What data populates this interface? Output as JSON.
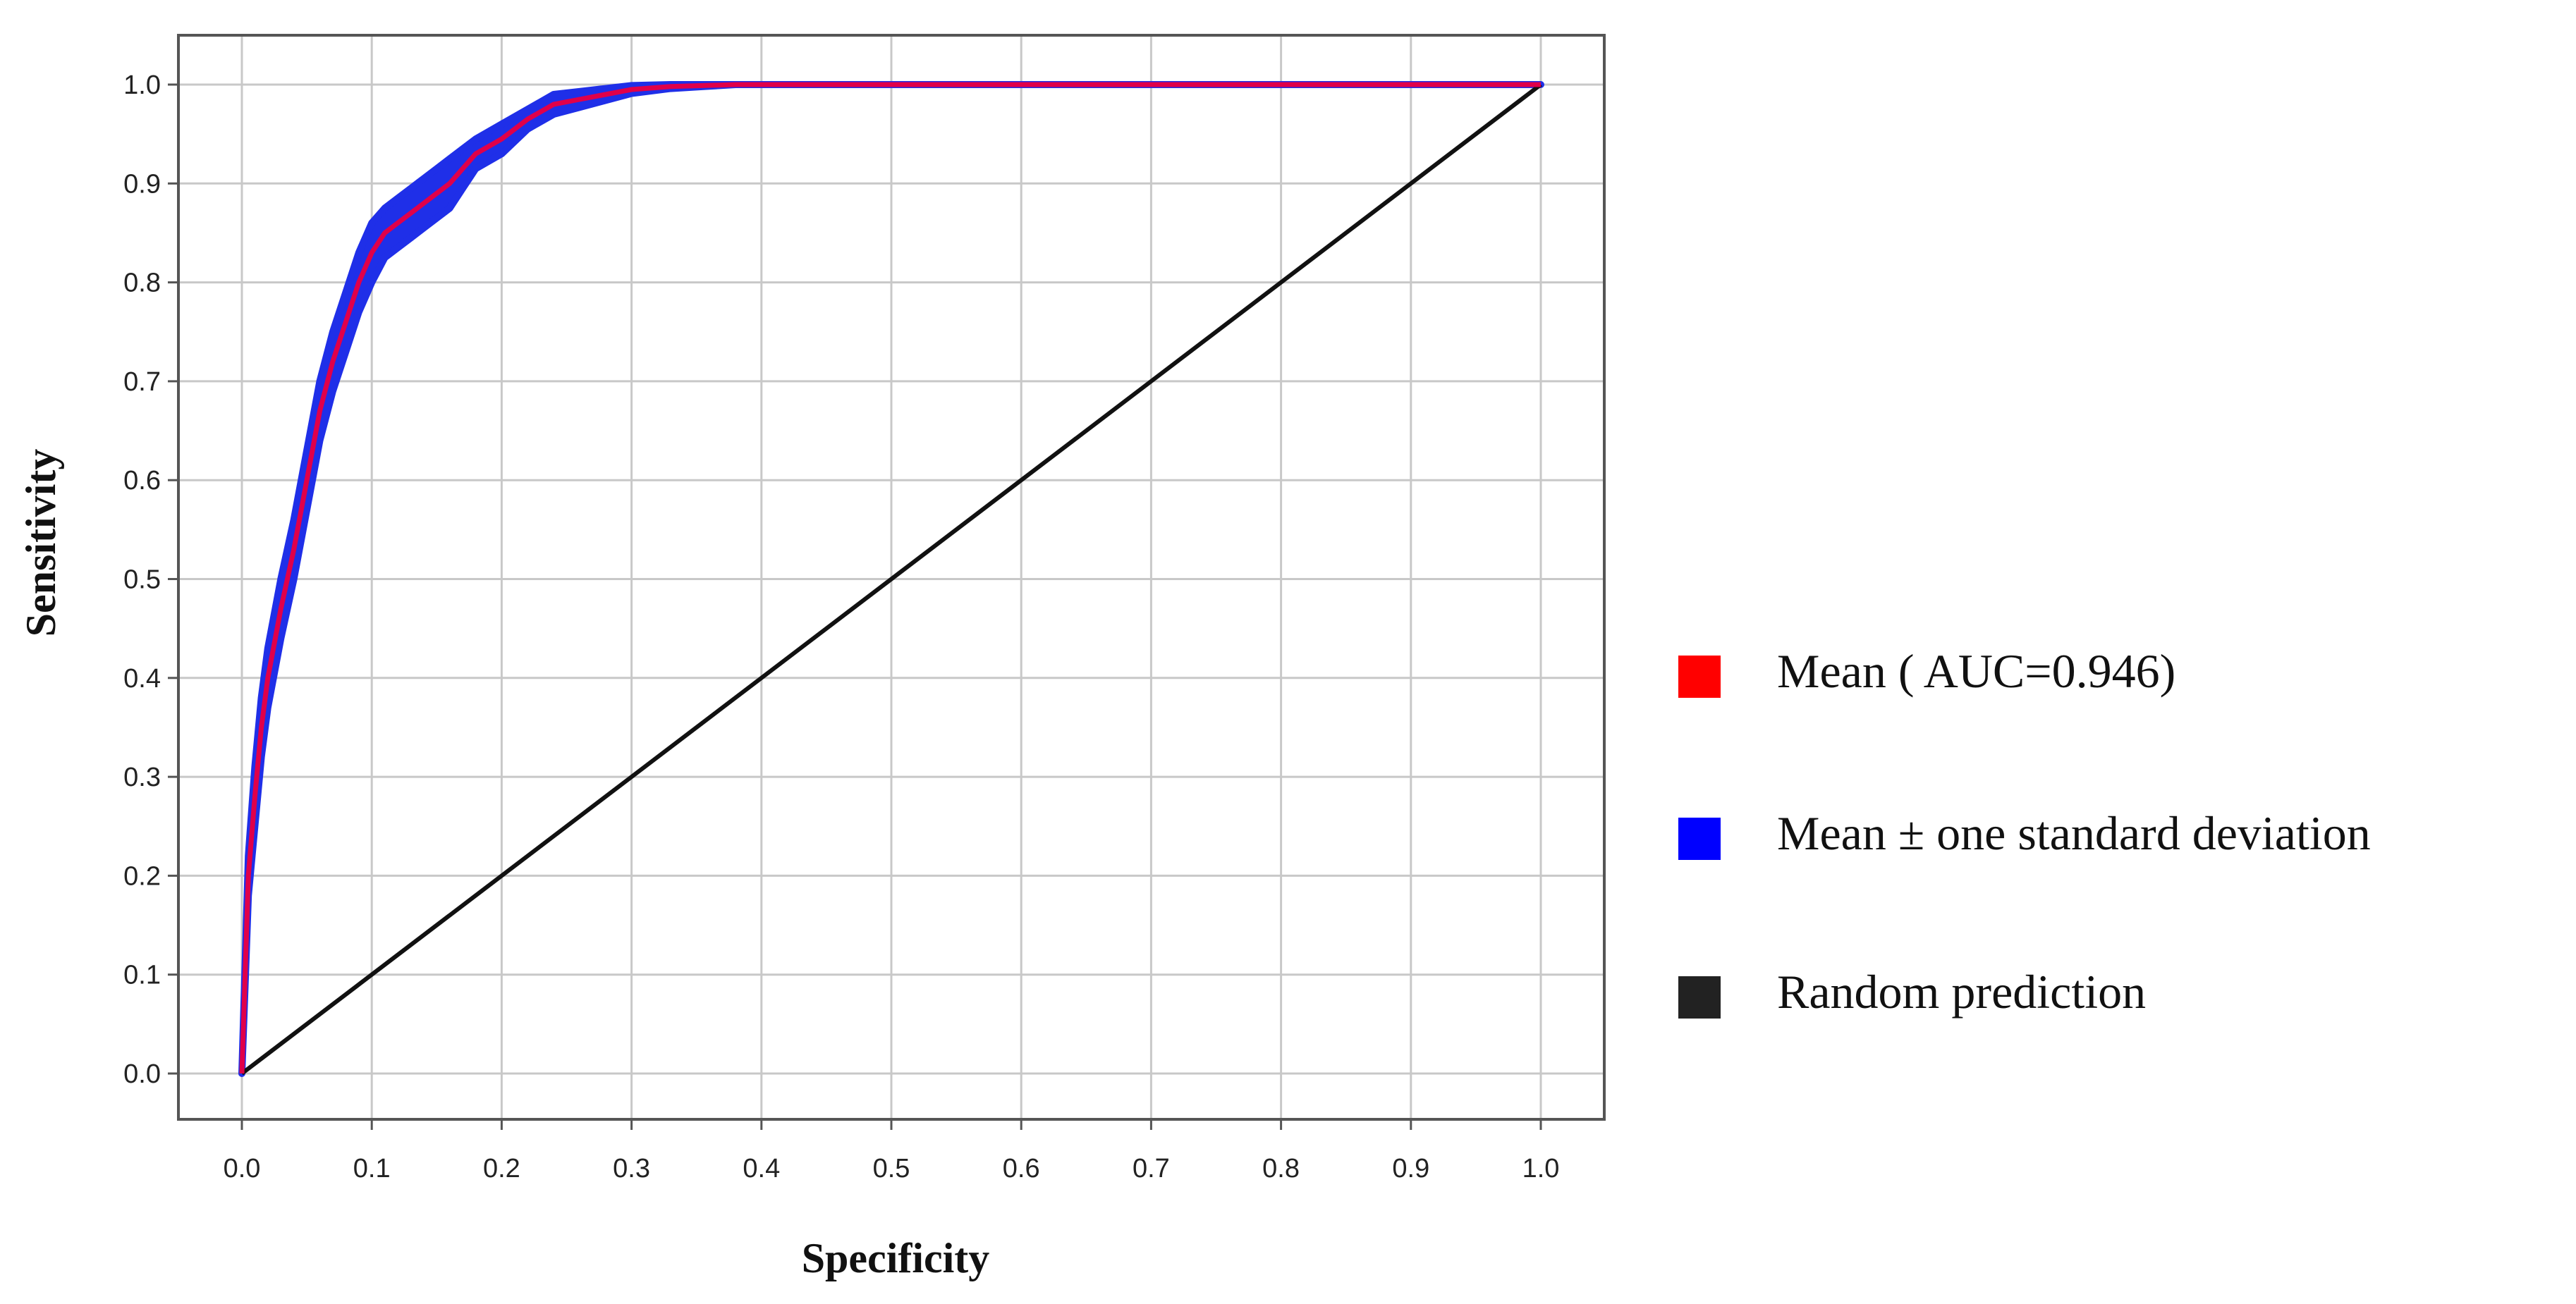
{
  "chart_data": {
    "type": "line",
    "title": "",
    "xlabel": "Specificity",
    "ylabel": "Sensitivity",
    "xlim": [
      0,
      1
    ],
    "ylim": [
      0,
      1
    ],
    "xticks": [
      "0.0",
      "0.1",
      "0.2",
      "0.3",
      "0.4",
      "0.5",
      "0.6",
      "0.7",
      "0.8",
      "0.9",
      "1.0"
    ],
    "yticks": [
      "0.0",
      "0.1",
      "0.2",
      "0.3",
      "0.4",
      "0.5",
      "0.6",
      "0.7",
      "0.8",
      "0.9",
      "1.0"
    ],
    "grid": true,
    "legend_position": "right",
    "series": [
      {
        "name": "Mean ( AUC=0.946)",
        "color": "#ff0000",
        "x": [
          0,
          0.005,
          0.01,
          0.015,
          0.02,
          0.03,
          0.04,
          0.05,
          0.06,
          0.07,
          0.08,
          0.09,
          0.1,
          0.11,
          0.12,
          0.13,
          0.14,
          0.15,
          0.16,
          0.17,
          0.18,
          0.2,
          0.22,
          0.24,
          0.26,
          0.28,
          0.3,
          0.33,
          0.38,
          1.0
        ],
        "y": [
          0,
          0.2,
          0.28,
          0.35,
          0.4,
          0.47,
          0.53,
          0.6,
          0.67,
          0.72,
          0.76,
          0.8,
          0.83,
          0.85,
          0.86,
          0.87,
          0.88,
          0.89,
          0.9,
          0.915,
          0.93,
          0.945,
          0.965,
          0.98,
          0.985,
          0.99,
          0.995,
          0.998,
          1.0,
          1.0
        ]
      },
      {
        "name": "Mean ± one standard deviation",
        "color": "#0000ff",
        "upper": [
          0,
          0.22,
          0.31,
          0.38,
          0.43,
          0.5,
          0.56,
          0.63,
          0.7,
          0.75,
          0.79,
          0.83,
          0.86,
          0.875,
          0.885,
          0.895,
          0.905,
          0.915,
          0.925,
          0.935,
          0.945,
          0.96,
          0.975,
          0.99,
          0.993,
          0.996,
          0.999,
          1.0,
          1.0,
          1.0
        ],
        "lower": [
          0,
          0.18,
          0.25,
          0.32,
          0.37,
          0.44,
          0.5,
          0.57,
          0.64,
          0.69,
          0.73,
          0.77,
          0.8,
          0.825,
          0.835,
          0.845,
          0.855,
          0.865,
          0.875,
          0.895,
          0.915,
          0.93,
          0.955,
          0.97,
          0.977,
          0.984,
          0.991,
          0.996,
          1.0,
          1.0
        ]
      },
      {
        "name": "Random prediction",
        "color": "#000000",
        "x": [
          0,
          1
        ],
        "y": [
          0,
          1
        ]
      }
    ]
  },
  "legend": {
    "items": [
      {
        "label": "Mean ( AUC=0.946)",
        "color": "#ff0000"
      },
      {
        "label": "Mean ± one standard deviation",
        "color": "#0000ff"
      },
      {
        "label": "Random prediction",
        "color": "#222222"
      }
    ]
  },
  "colors": {
    "grid": "#c8c8c8",
    "frame": "#555555",
    "band": "#1f2fe8",
    "mean": "#e0004a",
    "random": "#111111"
  }
}
